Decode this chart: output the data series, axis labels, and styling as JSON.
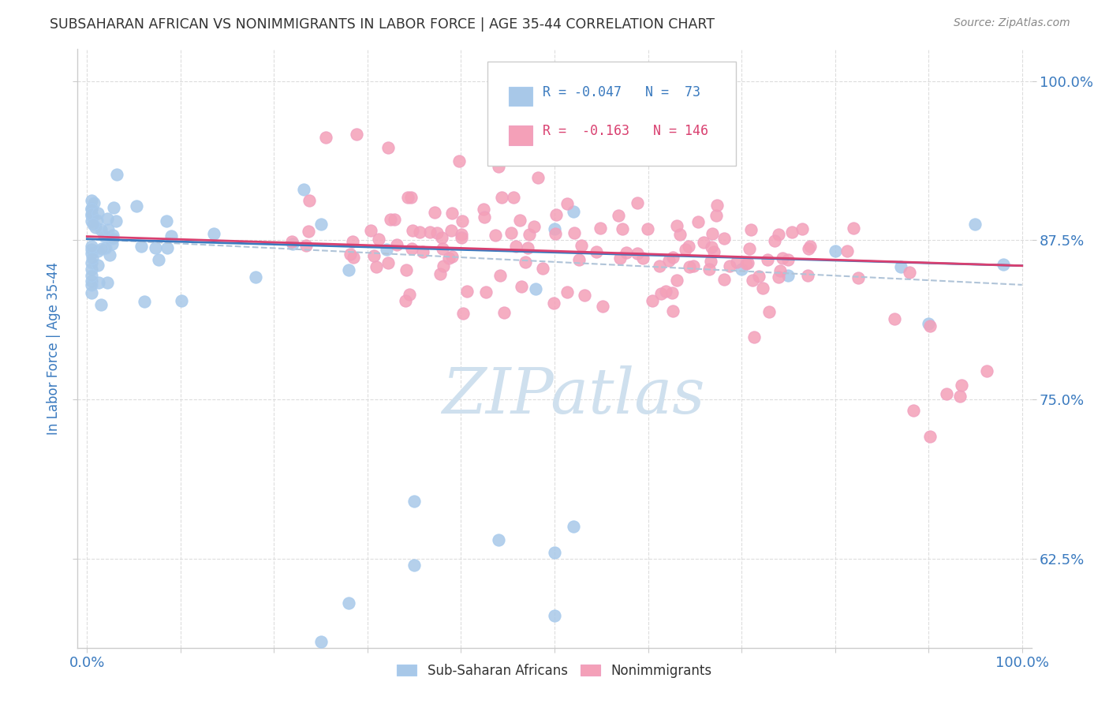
{
  "title": "SUBSAHARAN AFRICAN VS NONIMMIGRANTS IN LABOR FORCE | AGE 35-44 CORRELATION CHART",
  "source": "Source: ZipAtlas.com",
  "ylabel": "In Labor Force | Age 35-44",
  "xlim": [
    -0.01,
    1.01
  ],
  "ylim": [
    0.555,
    1.025
  ],
  "yticks": [
    0.625,
    0.75,
    0.875,
    1.0
  ],
  "ytick_labels": [
    "62.5%",
    "75.0%",
    "87.5%",
    "100.0%"
  ],
  "xticks": [
    0.0,
    0.1,
    0.2,
    0.3,
    0.4,
    0.5,
    0.6,
    0.7,
    0.8,
    0.9,
    1.0
  ],
  "xtick_labels": [
    "0.0%",
    "",
    "",
    "",
    "",
    "",
    "",
    "",
    "",
    "",
    "100.0%"
  ],
  "blue_color": "#a8c8e8",
  "pink_color": "#f4a0b8",
  "blue_line_color": "#3a7abf",
  "pink_line_color": "#d94070",
  "dashed_line_color": "#b0c4d8",
  "watermark_color": "#cfe0ee",
  "background_color": "#ffffff",
  "title_color": "#333333",
  "source_color": "#888888",
  "axis_label_color": "#3a7abf",
  "tick_label_color": "#3a7abf",
  "grid_color": "#dddddd",
  "blue_trend": [
    0.876,
    0.855
  ],
  "pink_trend": [
    0.878,
    0.855
  ],
  "dash_trend": [
    0.876,
    0.84
  ]
}
